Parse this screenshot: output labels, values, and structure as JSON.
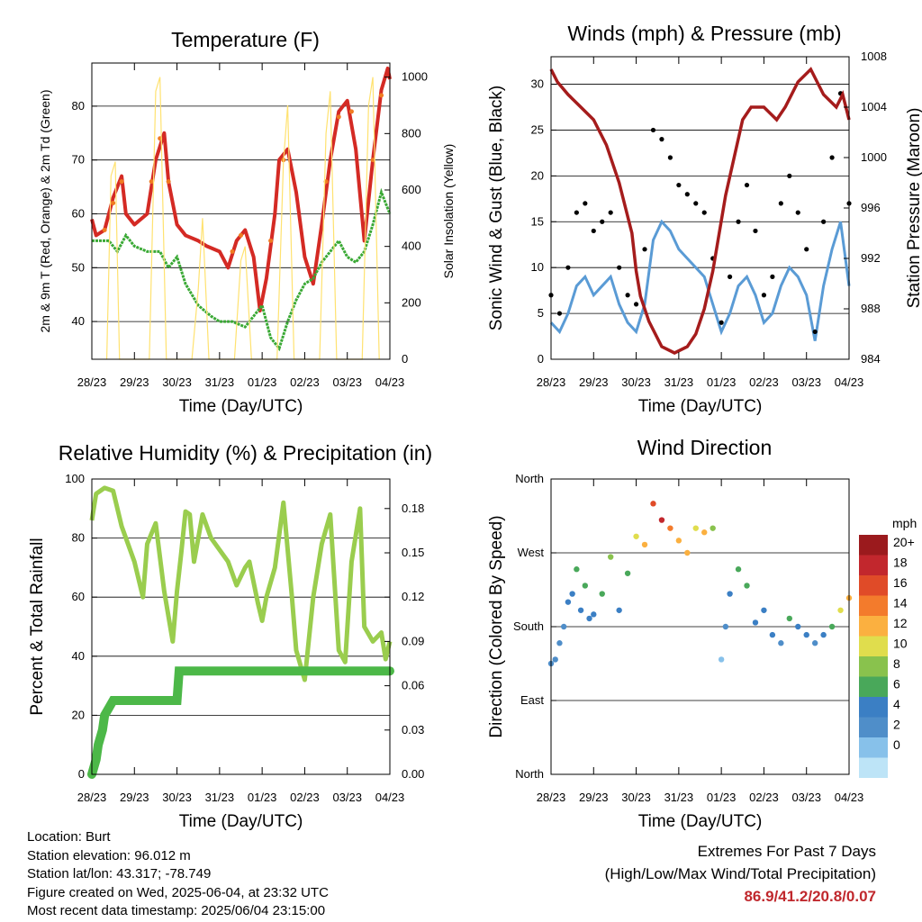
{
  "colors": {
    "temp_2m": "#d42a24",
    "temp_9m": "#f07b21",
    "dewpoint": "#3aa935",
    "insolation": "#ffe270",
    "wind": "#5a9bd5",
    "gust": "#000000",
    "pressure": "#a51c1c",
    "rh": "#9acd4e",
    "precip": "#4cb848",
    "extremes_value": "#c0282d"
  },
  "chart_data": [
    {
      "id": "temperature",
      "type": "line",
      "title": "Temperature (F)",
      "xlabel": "Time (Day/UTC)",
      "ylabel": "2m & 9m T (Red, Orange) & 2m Td (Green)",
      "y2label": "Solar Insolation (Yellow)",
      "x_ticks": [
        "28/23",
        "29/23",
        "30/23",
        "31/23",
        "01/23",
        "02/23",
        "03/23",
        "04/23"
      ],
      "xlim": [
        0,
        7
      ],
      "ylim": [
        33,
        88
      ],
      "y_ticks": [
        40,
        50,
        60,
        70,
        80
      ],
      "y2lim": [
        0,
        1050
      ],
      "y2_ticks": [
        0,
        200,
        400,
        600,
        800,
        1000
      ],
      "grid": true,
      "series": [
        {
          "key": "temp_2m",
          "x": [
            0,
            0.1,
            0.3,
            0.5,
            0.7,
            0.8,
            1.0,
            1.3,
            1.5,
            1.7,
            1.8,
            2.0,
            2.2,
            2.5,
            2.7,
            3.0,
            3.2,
            3.4,
            3.6,
            3.8,
            3.95,
            4.1,
            4.3,
            4.4,
            4.6,
            4.8,
            5.0,
            5.2,
            5.4,
            5.6,
            5.8,
            6.0,
            6.2,
            6.4,
            6.6,
            6.8,
            6.95,
            7.0
          ],
          "y": [
            59,
            56,
            57,
            63,
            67,
            60,
            58,
            60,
            70,
            75,
            66,
            58,
            56,
            55,
            54,
            53,
            50,
            55,
            57,
            52,
            42,
            48,
            60,
            70,
            72,
            64,
            52,
            47,
            58,
            70,
            79,
            81,
            72,
            55,
            70,
            83,
            87,
            85
          ]
        },
        {
          "key": "temp_9m",
          "x": [
            0.3,
            0.5,
            0.7,
            1.4,
            1.6,
            1.8,
            3.3,
            3.5,
            4.2,
            4.5,
            5.5,
            5.8,
            6.1,
            6.6,
            6.8
          ],
          "y": [
            57,
            62,
            66,
            66,
            74,
            66,
            53,
            56,
            55,
            70,
            66,
            78,
            79,
            70,
            82
          ]
        },
        {
          "key": "dewpoint",
          "x": [
            0,
            0.4,
            0.6,
            0.8,
            1.0,
            1.3,
            1.6,
            1.8,
            2.0,
            2.2,
            2.5,
            2.8,
            3.0,
            3.3,
            3.6,
            3.8,
            4.0,
            4.2,
            4.4,
            4.6,
            4.8,
            5.0,
            5.2,
            5.4,
            5.6,
            5.8,
            6.0,
            6.2,
            6.4,
            6.6,
            6.8,
            7.0
          ],
          "y": [
            55,
            55,
            53,
            56,
            54,
            53,
            53,
            50,
            52,
            47,
            43,
            41,
            40,
            40,
            39,
            41,
            43,
            37,
            35,
            40,
            44,
            47,
            48,
            51,
            53,
            55,
            52,
            51,
            53,
            58,
            64,
            60
          ]
        },
        {
          "key": "insolation",
          "axis": "y2",
          "x": [
            0.35,
            0.45,
            0.55,
            0.65,
            1.35,
            1.5,
            1.6,
            1.75,
            2.35,
            2.5,
            2.6,
            2.75,
            3.35,
            3.5,
            3.6,
            3.75,
            4.35,
            4.5,
            4.6,
            4.75,
            5.35,
            5.5,
            5.6,
            5.75,
            6.35,
            6.5,
            6.6,
            6.75
          ],
          "y": [
            0,
            650,
            700,
            0,
            0,
            950,
            1000,
            0,
            0,
            250,
            500,
            0,
            0,
            350,
            400,
            0,
            0,
            700,
            900,
            0,
            0,
            800,
            950,
            0,
            0,
            900,
            1000,
            0
          ]
        }
      ]
    },
    {
      "id": "winds",
      "type": "scatter",
      "title": "Winds (mph) & Pressure (mb)",
      "xlabel": "Time (Day/UTC)",
      "ylabel": "Sonic Wind & Gust (Blue, Black)",
      "y2label": "Station Pressure (Maroon)",
      "x_ticks": [
        "28/23",
        "29/23",
        "30/23",
        "31/23",
        "01/23",
        "02/23",
        "03/23",
        "04/23"
      ],
      "xlim": [
        0,
        7
      ],
      "ylim": [
        0,
        33
      ],
      "y_ticks": [
        0,
        5,
        10,
        15,
        20,
        25,
        30
      ],
      "y2lim": [
        984,
        1008
      ],
      "y2_ticks": [
        984,
        988,
        992,
        996,
        1000,
        1004,
        1008
      ],
      "grid": true,
      "series": [
        {
          "key": "wind",
          "x": [
            0,
            0.2,
            0.4,
            0.6,
            0.8,
            1.0,
            1.2,
            1.4,
            1.6,
            1.8,
            2.0,
            2.2,
            2.4,
            2.6,
            2.8,
            3.0,
            3.2,
            3.4,
            3.6,
            3.8,
            4.0,
            4.2,
            4.4,
            4.6,
            4.8,
            5.0,
            5.2,
            5.4,
            5.6,
            5.8,
            6.0,
            6.2,
            6.4,
            6.6,
            6.8,
            7.0
          ],
          "y": [
            4,
            3,
            5,
            8,
            9,
            7,
            8,
            9,
            6,
            4,
            3,
            6,
            13,
            15,
            14,
            12,
            11,
            10,
            9,
            6,
            3,
            5,
            8,
            9,
            7,
            4,
            5,
            8,
            10,
            9,
            7,
            2,
            8,
            12,
            15,
            8
          ]
        },
        {
          "key": "gust",
          "x": [
            0,
            0.2,
            0.4,
            0.6,
            0.8,
            1.0,
            1.2,
            1.4,
            1.6,
            1.8,
            2.0,
            2.2,
            2.4,
            2.6,
            2.8,
            3.0,
            3.2,
            3.4,
            3.6,
            3.8,
            4.0,
            4.2,
            4.4,
            4.6,
            4.8,
            5.0,
            5.2,
            5.4,
            5.6,
            5.8,
            6.0,
            6.2,
            6.4,
            6.6,
            6.8,
            7.0
          ],
          "y": [
            7,
            5,
            10,
            16,
            17,
            14,
            15,
            16,
            10,
            7,
            6,
            12,
            25,
            24,
            22,
            19,
            18,
            17,
            16,
            11,
            4,
            9,
            15,
            19,
            14,
            7,
            9,
            17,
            20,
            16,
            12,
            3,
            15,
            22,
            29,
            17
          ]
        },
        {
          "key": "pressure",
          "axis": "y2",
          "x": [
            0,
            0.15,
            0.4,
            0.7,
            1.0,
            1.3,
            1.6,
            1.9,
            2.0,
            2.1,
            2.3,
            2.6,
            2.9,
            3.2,
            3.4,
            3.6,
            3.8,
            3.95,
            4.1,
            4.3,
            4.5,
            4.7,
            5.0,
            5.3,
            5.5,
            5.8,
            6.1,
            6.4,
            6.7,
            6.85,
            7.0
          ],
          "y": [
            1007,
            1006,
            1005,
            1004,
            1003,
            1001,
            998,
            994,
            991,
            989,
            987,
            985,
            984.5,
            985,
            986,
            988,
            991,
            994,
            997,
            1000,
            1003,
            1004,
            1004,
            1003,
            1004,
            1006,
            1007,
            1005,
            1004,
            1005,
            1003
          ]
        }
      ]
    },
    {
      "id": "humidity",
      "type": "line",
      "title": "Relative Humidity (%) & Precipitation (in)",
      "xlabel": "Time (Day/UTC)",
      "ylabel": "Percent & Total Rainfall",
      "x_ticks": [
        "28/23",
        "29/23",
        "30/23",
        "31/23",
        "01/23",
        "02/23",
        "03/23",
        "04/23"
      ],
      "xlim": [
        0,
        7
      ],
      "ylim": [
        0,
        100
      ],
      "y_ticks": [
        0,
        20,
        40,
        60,
        80,
        100
      ],
      "y2lim": [
        0,
        0.2
      ],
      "y2_ticks": [
        "0.00",
        "0.03",
        "0.06",
        "0.09",
        "0.12",
        "0.15",
        "0.18"
      ],
      "grid": true,
      "series": [
        {
          "key": "rh",
          "x": [
            0,
            0.1,
            0.3,
            0.5,
            0.7,
            0.8,
            1.0,
            1.2,
            1.3,
            1.5,
            1.7,
            1.9,
            2.0,
            2.1,
            2.2,
            2.3,
            2.4,
            2.6,
            2.8,
            3.0,
            3.2,
            3.4,
            3.6,
            3.7,
            3.9,
            4.0,
            4.1,
            4.3,
            4.5,
            4.7,
            4.8,
            5.0,
            5.2,
            5.4,
            5.6,
            5.8,
            5.95,
            6.1,
            6.3,
            6.4,
            6.6,
            6.8,
            6.9,
            7.0
          ],
          "y": [
            86,
            95,
            97,
            96,
            84,
            80,
            72,
            60,
            78,
            85,
            62,
            45,
            62,
            75,
            89,
            88,
            72,
            88,
            80,
            76,
            72,
            64,
            70,
            72,
            58,
            52,
            60,
            70,
            92,
            60,
            42,
            32,
            60,
            78,
            88,
            42,
            38,
            72,
            90,
            50,
            45,
            48,
            39,
            45
          ]
        },
        {
          "key": "precip",
          "axis": "y2",
          "x": [
            0,
            0.05,
            0.1,
            0.15,
            0.2,
            0.25,
            0.3,
            0.4,
            0.5,
            1.0,
            1.5,
            2.0,
            2.05,
            2.1,
            3.0,
            4.0,
            5.0,
            6.0,
            7.0
          ],
          "y": [
            0,
            0.005,
            0.01,
            0.02,
            0.025,
            0.03,
            0.04,
            0.045,
            0.05,
            0.05,
            0.05,
            0.05,
            0.07,
            0.07,
            0.07,
            0.07,
            0.07,
            0.07,
            0.07
          ]
        }
      ]
    },
    {
      "id": "direction",
      "type": "scatter",
      "title": "Wind Direction",
      "xlabel": "Time (Day/UTC)",
      "ylabel": "Direction (Colored By Speed)",
      "x_ticks": [
        "28/23",
        "29/23",
        "30/23",
        "31/23",
        "01/23",
        "02/23",
        "03/23",
        "04/23"
      ],
      "xlim": [
        0,
        7
      ],
      "ylim": [
        0,
        360
      ],
      "y_ticks": [
        0,
        90,
        180,
        270,
        360
      ],
      "y_tick_labels": [
        "North",
        "East",
        "South",
        "West",
        "North"
      ],
      "grid": true,
      "legend": {
        "title": "mph",
        "position": "right",
        "labels": [
          "20+",
          "18",
          "16",
          "14",
          "12",
          "10",
          "8",
          "6",
          "4",
          "2",
          "0"
        ]
      },
      "colorscale": [
        "#bde4f7",
        "#87c1ea",
        "#4f8ec9",
        "#3b7fc4",
        "#49a85a",
        "#89c24d",
        "#e0dd4d",
        "#fbb040",
        "#f37b2c",
        "#e04b28",
        "#c2272d",
        "#9b1a1d"
      ],
      "series": [
        {
          "key": "direction_speed",
          "x": [
            0.0,
            0.1,
            0.2,
            0.3,
            0.4,
            0.5,
            0.6,
            0.7,
            0.8,
            0.9,
            1.0,
            1.2,
            1.4,
            1.6,
            1.8,
            2.0,
            2.2,
            2.4,
            2.6,
            2.8,
            3.0,
            3.2,
            3.4,
            3.6,
            3.8,
            4.0,
            4.1,
            4.2,
            4.4,
            4.6,
            4.8,
            5.0,
            5.2,
            5.4,
            5.6,
            5.8,
            6.0,
            6.2,
            6.4,
            6.6,
            6.8,
            7.0
          ],
          "y": [
            135,
            140,
            160,
            180,
            210,
            220,
            250,
            200,
            230,
            190,
            195,
            220,
            265,
            200,
            245,
            290,
            280,
            330,
            310,
            300,
            285,
            270,
            300,
            295,
            300,
            140,
            180,
            220,
            250,
            230,
            185,
            200,
            170,
            160,
            190,
            180,
            170,
            160,
            170,
            180,
            200,
            215
          ],
          "speed": [
            3,
            3,
            4,
            4,
            5,
            6,
            7,
            5,
            7,
            5,
            6,
            7,
            9,
            6,
            8,
            12,
            14,
            18,
            20,
            16,
            14,
            13,
            12,
            14,
            10,
            2,
            4,
            6,
            8,
            7,
            5,
            6,
            5,
            4,
            7,
            6,
            5,
            4,
            6,
            8,
            11,
            13
          ]
        }
      ]
    }
  ],
  "footer": {
    "location": "Location: Burt",
    "elevation": "Station elevation: 96.012 m",
    "latlon": "Station lat/lon: 43.317; -78.749",
    "created": "Figure created on Wed, 2025-06-04, at 23:32 UTC",
    "recent": "Most recent data timestamp: 2025/06/04 23:15:00"
  },
  "extremes": {
    "title": "Extremes For Past 7 Days",
    "subtitle": "(High/Low/Max Wind/Total Precipitation)",
    "values": "86.9/41.2/20.8/0.07"
  }
}
